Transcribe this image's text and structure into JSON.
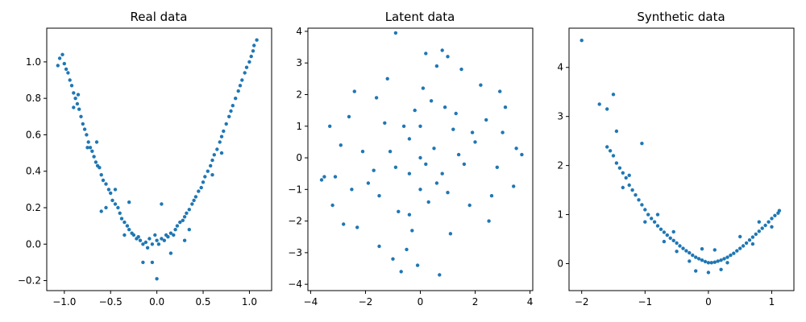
{
  "colors": {
    "points": "#1f77b4",
    "axes": "#000000",
    "background": "#ffffff"
  },
  "chart_data": [
    {
      "type": "scatter",
      "title": "Real data",
      "xlabel": "",
      "ylabel": "",
      "xlim": [
        -1.19,
        1.24
      ],
      "ylim": [
        -0.255,
        1.185
      ],
      "xticks": [
        -1.0,
        -0.5,
        0.0,
        0.5,
        1.0
      ],
      "xtick_labels": [
        "−1.0",
        "−0.5",
        "0.0",
        "0.5",
        "1.0"
      ],
      "yticks": [
        -0.2,
        0.0,
        0.2,
        0.4,
        0.6,
        0.8,
        1.0
      ],
      "ytick_labels": [
        "−0.2",
        "0.0",
        "0.2",
        "0.4",
        "0.6",
        "0.8",
        "1.0"
      ],
      "grid": false,
      "points": [
        [
          -1.05,
          1.02
        ],
        [
          -1.0,
          0.99
        ],
        [
          -0.98,
          0.96
        ],
        [
          -1.02,
          1.04
        ],
        [
          -0.96,
          0.94
        ],
        [
          -0.94,
          0.9
        ],
        [
          -0.92,
          0.87
        ],
        [
          -0.9,
          0.83
        ],
        [
          -0.88,
          0.8
        ],
        [
          -0.86,
          0.77
        ],
        [
          -0.84,
          0.74
        ],
        [
          -0.82,
          0.7
        ],
        [
          -0.8,
          0.66
        ],
        [
          -0.78,
          0.63
        ],
        [
          -0.76,
          0.6
        ],
        [
          -0.74,
          0.56
        ],
        [
          -0.72,
          0.53
        ],
        [
          -0.7,
          0.51
        ],
        [
          -0.68,
          0.48
        ],
        [
          -0.66,
          0.45
        ],
        [
          -0.64,
          0.43
        ],
        [
          -0.62,
          0.42
        ],
        [
          -0.6,
          0.38
        ],
        [
          -0.58,
          0.35
        ],
        [
          -0.55,
          0.33
        ],
        [
          -0.52,
          0.3
        ],
        [
          -0.5,
          0.28
        ],
        [
          -0.48,
          0.24
        ],
        [
          -0.45,
          0.22
        ],
        [
          -0.42,
          0.2
        ],
        [
          -0.4,
          0.17
        ],
        [
          -0.38,
          0.14
        ],
        [
          -0.35,
          0.12
        ],
        [
          -0.32,
          0.1
        ],
        [
          -0.3,
          0.08
        ],
        [
          -0.27,
          0.06
        ],
        [
          -0.25,
          0.05
        ],
        [
          -0.22,
          0.03
        ],
        [
          -0.2,
          0.04
        ],
        [
          -0.18,
          0.02
        ],
        [
          -0.15,
          0.0
        ],
        [
          -0.12,
          0.01
        ],
        [
          -0.1,
          -0.02
        ],
        [
          -0.08,
          0.03
        ],
        [
          -0.05,
          0.0
        ],
        [
          -0.02,
          0.05
        ],
        [
          0.0,
          0.02
        ],
        [
          0.02,
          0.0
        ],
        [
          0.05,
          0.03
        ],
        [
          0.08,
          0.02
        ],
        [
          0.1,
          0.05
        ],
        [
          0.12,
          0.04
        ],
        [
          0.15,
          0.06
        ],
        [
          0.18,
          0.05
        ],
        [
          0.2,
          0.08
        ],
        [
          0.22,
          0.1
        ],
        [
          0.25,
          0.12
        ],
        [
          0.28,
          0.13
        ],
        [
          0.3,
          0.15
        ],
        [
          0.32,
          0.17
        ],
        [
          0.35,
          0.19
        ],
        [
          0.38,
          0.22
        ],
        [
          0.4,
          0.24
        ],
        [
          0.42,
          0.26
        ],
        [
          0.45,
          0.29
        ],
        [
          0.48,
          0.31
        ],
        [
          0.5,
          0.34
        ],
        [
          0.52,
          0.37
        ],
        [
          0.55,
          0.4
        ],
        [
          0.58,
          0.43
        ],
        [
          0.6,
          0.46
        ],
        [
          0.62,
          0.49
        ],
        [
          0.65,
          0.52
        ],
        [
          0.68,
          0.56
        ],
        [
          0.7,
          0.59
        ],
        [
          0.72,
          0.62
        ],
        [
          0.75,
          0.66
        ],
        [
          0.78,
          0.7
        ],
        [
          0.8,
          0.73
        ],
        [
          0.82,
          0.76
        ],
        [
          0.85,
          0.8
        ],
        [
          0.88,
          0.84
        ],
        [
          0.9,
          0.87
        ],
        [
          0.92,
          0.9
        ],
        [
          0.95,
          0.94
        ],
        [
          0.97,
          0.97
        ],
        [
          1.0,
          1.0
        ],
        [
          1.02,
          1.03
        ],
        [
          1.04,
          1.06
        ],
        [
          1.05,
          1.09
        ],
        [
          -0.9,
          0.75
        ],
        [
          -0.75,
          0.53
        ],
        [
          -0.55,
          0.2
        ],
        [
          -0.3,
          0.23
        ],
        [
          -0.15,
          -0.1
        ],
        [
          -0.05,
          -0.1
        ],
        [
          0.0,
          -0.19
        ],
        [
          0.05,
          0.22
        ],
        [
          -0.6,
          0.18
        ],
        [
          0.3,
          0.02
        ],
        [
          -1.07,
          0.98
        ],
        [
          -0.85,
          0.82
        ],
        [
          -0.65,
          0.56
        ],
        [
          -0.45,
          0.3
        ],
        [
          -0.35,
          0.05
        ],
        [
          0.15,
          -0.05
        ],
        [
          0.35,
          0.08
        ],
        [
          0.6,
          0.38
        ],
        [
          0.7,
          0.5
        ],
        [
          1.08,
          1.12
        ]
      ]
    },
    {
      "type": "scatter",
      "title": "Latent data",
      "xlabel": "",
      "ylabel": "",
      "xlim": [
        -4.1,
        4.1
      ],
      "ylim": [
        -4.2,
        4.1
      ],
      "xticks": [
        -4,
        -2,
        0,
        2,
        4
      ],
      "xtick_labels": [
        "−4",
        "−2",
        "0",
        "2",
        "4"
      ],
      "yticks": [
        -4,
        -3,
        -2,
        -1,
        0,
        1,
        2,
        3,
        4
      ],
      "ytick_labels": [
        "−4",
        "−3",
        "−2",
        "−1",
        "0",
        "1",
        "2",
        "3",
        "4"
      ],
      "grid": false,
      "points": [
        [
          0.0,
          0.0
        ],
        [
          0.5,
          0.3
        ],
        [
          -0.4,
          0.6
        ],
        [
          0.8,
          -0.5
        ],
        [
          -0.9,
          -0.3
        ],
        [
          1.2,
          0.9
        ],
        [
          -1.3,
          1.1
        ],
        [
          0.3,
          -1.4
        ],
        [
          -0.2,
          1.5
        ],
        [
          1.6,
          -0.2
        ],
        [
          -1.7,
          -0.4
        ],
        [
          0.9,
          1.6
        ],
        [
          -0.8,
          -1.7
        ],
        [
          2.0,
          0.5
        ],
        [
          -2.1,
          0.2
        ],
        [
          0.1,
          2.2
        ],
        [
          -0.3,
          -2.3
        ],
        [
          1.8,
          -1.5
        ],
        [
          -1.6,
          1.9
        ],
        [
          2.4,
          1.2
        ],
        [
          -2.5,
          -1.0
        ],
        [
          1.1,
          -2.4
        ],
        [
          -1.2,
          2.5
        ],
        [
          2.8,
          -0.3
        ],
        [
          -2.9,
          0.4
        ],
        [
          0.6,
          2.9
        ],
        [
          -0.5,
          -2.9
        ],
        [
          3.0,
          0.8
        ],
        [
          -3.1,
          -0.6
        ],
        [
          0.2,
          3.3
        ],
        [
          -0.1,
          -3.4
        ],
        [
          2.2,
          2.3
        ],
        [
          -2.3,
          -2.2
        ],
        [
          2.5,
          -2.0
        ],
        [
          -2.4,
          2.1
        ],
        [
          3.4,
          -0.9
        ],
        [
          -3.3,
          1.0
        ],
        [
          1.0,
          3.2
        ],
        [
          -1.0,
          -3.2
        ],
        [
          3.7,
          0.1
        ],
        [
          -3.6,
          -0.7
        ],
        [
          -0.9,
          3.95
        ],
        [
          0.7,
          -3.7
        ],
        [
          -0.4,
          -0.5
        ],
        [
          0.6,
          -0.8
        ],
        [
          -1.1,
          0.2
        ],
        [
          1.4,
          0.1
        ],
        [
          0.2,
          -0.2
        ],
        [
          -0.6,
          1.0
        ],
        [
          1.0,
          -1.1
        ],
        [
          -1.5,
          -1.2
        ],
        [
          1.3,
          1.4
        ],
        [
          0.0,
          1.0
        ],
        [
          0.0,
          -1.0
        ],
        [
          1.9,
          0.8
        ],
        [
          -1.9,
          -0.8
        ],
        [
          0.4,
          1.8
        ],
        [
          -0.4,
          -1.8
        ],
        [
          2.6,
          -1.2
        ],
        [
          -2.6,
          1.3
        ],
        [
          3.1,
          1.6
        ],
        [
          -3.2,
          -1.5
        ],
        [
          1.5,
          2.8
        ],
        [
          -1.5,
          -2.8
        ],
        [
          -3.5,
          -0.6
        ],
        [
          3.5,
          0.3
        ],
        [
          2.9,
          2.1
        ],
        [
          -2.8,
          -2.1
        ],
        [
          0.8,
          3.4
        ],
        [
          -0.7,
          -3.6
        ]
      ]
    },
    {
      "type": "scatter",
      "title": "Synthetic data",
      "xlabel": "",
      "ylabel": "",
      "xlim": [
        -2.2,
        1.35
      ],
      "ylim": [
        -0.55,
        4.8
      ],
      "xticks": [
        -2,
        -1,
        0,
        1
      ],
      "xtick_labels": [
        "−2",
        "−1",
        "0",
        "1"
      ],
      "yticks": [
        0,
        1,
        2,
        3,
        4
      ],
      "ytick_labels": [
        "0",
        "1",
        "2",
        "3",
        "4"
      ],
      "grid": false,
      "points": [
        [
          -2.0,
          4.55
        ],
        [
          -1.72,
          3.25
        ],
        [
          -1.6,
          3.15
        ],
        [
          -1.5,
          3.45
        ],
        [
          -1.45,
          2.7
        ],
        [
          -1.05,
          2.45
        ],
        [
          -1.6,
          2.38
        ],
        [
          -1.55,
          2.3
        ],
        [
          -1.5,
          2.2
        ],
        [
          -1.45,
          2.05
        ],
        [
          -1.4,
          1.95
        ],
        [
          -1.35,
          1.85
        ],
        [
          -1.3,
          1.75
        ],
        [
          -1.25,
          1.6
        ],
        [
          -1.2,
          1.5
        ],
        [
          -1.15,
          1.4
        ],
        [
          -1.1,
          1.3
        ],
        [
          -1.05,
          1.2
        ],
        [
          -1.0,
          1.1
        ],
        [
          -0.95,
          1.0
        ],
        [
          -0.9,
          0.92
        ],
        [
          -0.85,
          0.85
        ],
        [
          -0.8,
          0.77
        ],
        [
          -0.75,
          0.7
        ],
        [
          -0.7,
          0.64
        ],
        [
          -0.65,
          0.58
        ],
        [
          -0.6,
          0.52
        ],
        [
          -0.55,
          0.47
        ],
        [
          -0.5,
          0.42
        ],
        [
          -0.45,
          0.36
        ],
        [
          -0.4,
          0.31
        ],
        [
          -0.35,
          0.26
        ],
        [
          -0.3,
          0.22
        ],
        [
          -0.25,
          0.17
        ],
        [
          -0.2,
          0.13
        ],
        [
          -0.15,
          0.1
        ],
        [
          -0.1,
          0.07
        ],
        [
          -0.05,
          0.04
        ],
        [
          0.0,
          0.02
        ],
        [
          0.05,
          0.02
        ],
        [
          0.1,
          0.03
        ],
        [
          0.15,
          0.05
        ],
        [
          0.2,
          0.07
        ],
        [
          0.25,
          0.1
        ],
        [
          0.3,
          0.13
        ],
        [
          0.35,
          0.17
        ],
        [
          0.4,
          0.21
        ],
        [
          0.45,
          0.26
        ],
        [
          0.5,
          0.31
        ],
        [
          0.55,
          0.36
        ],
        [
          0.6,
          0.42
        ],
        [
          0.65,
          0.48
        ],
        [
          0.7,
          0.54
        ],
        [
          0.75,
          0.6
        ],
        [
          0.8,
          0.66
        ],
        [
          0.85,
          0.72
        ],
        [
          0.9,
          0.78
        ],
        [
          0.95,
          0.85
        ],
        [
          1.0,
          0.92
        ],
        [
          1.05,
          0.98
        ],
        [
          1.1,
          1.03
        ],
        [
          1.12,
          1.08
        ],
        [
          -0.2,
          -0.15
        ],
        [
          0.2,
          -0.12
        ],
        [
          0.0,
          -0.18
        ],
        [
          -0.5,
          0.25
        ],
        [
          0.5,
          0.55
        ],
        [
          -0.8,
          1.0
        ],
        [
          0.8,
          0.85
        ],
        [
          -0.1,
          0.3
        ],
        [
          0.1,
          0.28
        ],
        [
          -1.25,
          1.8
        ],
        [
          -1.35,
          1.55
        ],
        [
          -0.7,
          0.45
        ],
        [
          0.7,
          0.4
        ],
        [
          -0.3,
          0.05
        ],
        [
          0.3,
          0.02
        ],
        [
          -1.0,
          0.85
        ],
        [
          1.0,
          0.75
        ],
        [
          -0.55,
          0.65
        ]
      ]
    }
  ]
}
